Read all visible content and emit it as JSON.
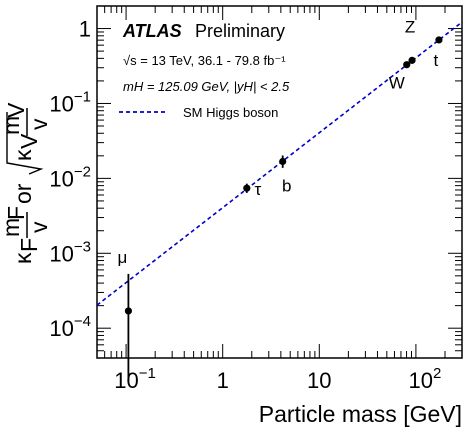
{
  "chart_data": {
    "type": "scatter",
    "experiment": "ATLAS",
    "status": "Preliminary",
    "annotations": [
      "√s = 13 TeV, 36.1 - 79.8 fb⁻¹",
      "mH = 125.09 GeV, |yH| < 2.5"
    ],
    "xlabel": "Particle mass [GeV]",
    "ylabel": "κF·mF/v or √κV·mV/v",
    "x_scale": "log",
    "y_scale": "log",
    "xlim": [
      0.05,
      300
    ],
    "ylim": [
      4e-05,
      2
    ],
    "x_ticks": [
      {
        "value": 0.1,
        "base": "10",
        "exp": "−1"
      },
      {
        "value": 1,
        "base": "1",
        "exp": ""
      },
      {
        "value": 10,
        "base": "10",
        "exp": ""
      },
      {
        "value": 100,
        "base": "10",
        "exp": "2"
      }
    ],
    "y_ticks": [
      {
        "value": 0.0001,
        "base": "10",
        "exp": "−4"
      },
      {
        "value": 0.001,
        "base": "10",
        "exp": "−3"
      },
      {
        "value": 0.01,
        "base": "10",
        "exp": "−2"
      },
      {
        "value": 0.1,
        "base": "10",
        "exp": "−1"
      },
      {
        "value": 1,
        "base": "1",
        "exp": ""
      }
    ],
    "legend": {
      "label": "SM Higgs boson",
      "position": "top-left",
      "color": "#0000cc",
      "style": "dashed"
    },
    "reference_line": {
      "name": "SM Higgs boson",
      "x": [
        0.05,
        300
      ],
      "y": [
        0.000203,
        1.22
      ]
    },
    "points": [
      {
        "label": "μ",
        "x": 0.1057,
        "y": 0.00017,
        "y_low": 2e-05,
        "y_high": 0.00053
      },
      {
        "label": "τ",
        "x": 1.777,
        "y": 0.0074,
        "y_low": 0.0064,
        "y_high": 0.0085
      },
      {
        "label": "b",
        "x": 4.18,
        "y": 0.0168,
        "y_low": 0.0138,
        "y_high": 0.0202
      },
      {
        "label": "W",
        "x": 80.4,
        "y": 0.329,
        "y_low": 0.313,
        "y_high": 0.344
      },
      {
        "label": "Z",
        "x": 91.19,
        "y": 0.376,
        "y_low": 0.361,
        "y_high": 0.392
      },
      {
        "label": "t",
        "x": 173.1,
        "y": 0.705,
        "y_low": 0.665,
        "y_high": 0.745
      }
    ],
    "point_color": "#000000"
  }
}
